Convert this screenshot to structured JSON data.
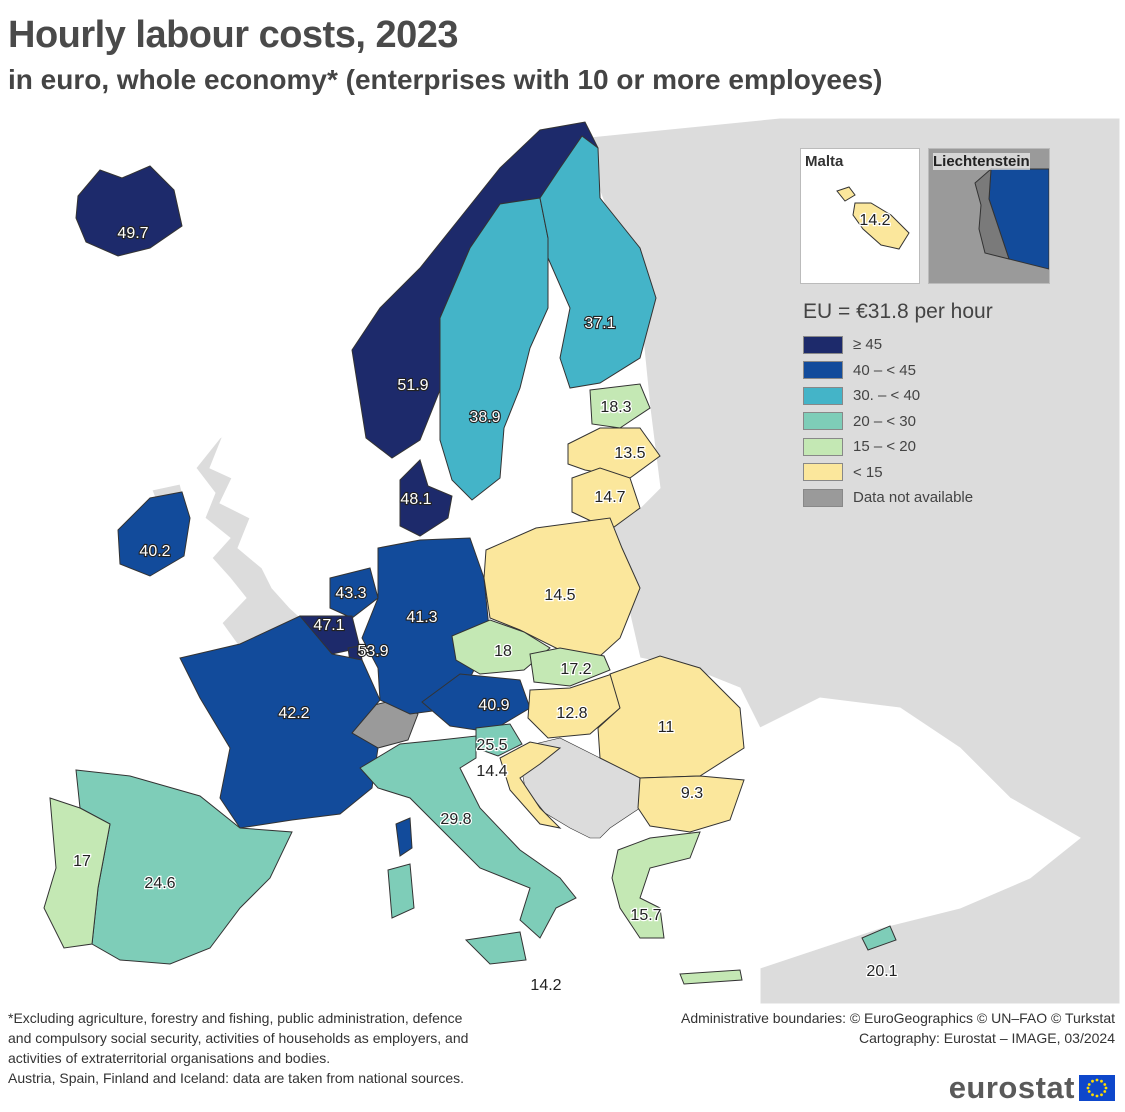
{
  "title": "Hourly labour costs, 2023",
  "subtitle": "in euro, whole economy* (enterprises with 10 or more employees)",
  "colors": {
    "c45": "#1d2a6b",
    "c40": "#124b9b",
    "c30": "#44b4c8",
    "c20": "#7ecdb8",
    "c15": "#c4e8b4",
    "c0": "#fbe79c",
    "na": "#9a9a9a",
    "nonEU": "#dcdcdc",
    "sea": "#ffffff",
    "border": "#333333"
  },
  "legend": {
    "title": "EU = €31.8 per hour",
    "items": [
      {
        "label": "≥ 45",
        "color": "#1d2a6b"
      },
      {
        "label": "40 – < 45",
        "color": "#124b9b"
      },
      {
        "label": "30. – < 40",
        "color": "#44b4c8"
      },
      {
        "label": "20 – < 30",
        "color": "#7ecdb8"
      },
      {
        "label": "15 – < 20",
        "color": "#c4e8b4"
      },
      {
        "label": "< 15",
        "color": "#fbe79c"
      },
      {
        "label": "Data not available",
        "color": "#9a9a9a"
      }
    ]
  },
  "insets": {
    "malta": {
      "label": "Malta",
      "value": "14.2"
    },
    "liechtenstein": {
      "label": "Liechtenstein"
    }
  },
  "values": {
    "iceland": "49.7",
    "norway": "51.9",
    "sweden": "38.9",
    "finland": "37.1",
    "estonia": "18.3",
    "latvia": "13.5",
    "lithuania": "14.7",
    "denmark": "48.1",
    "ireland": "40.2",
    "netherlands": "43.3",
    "belgium": "47.1",
    "luxembourg": "53.9",
    "germany": "41.3",
    "poland": "14.5",
    "czechia": "18",
    "slovakia": "17.2",
    "austria": "40.9",
    "hungary": "12.8",
    "romania": "11",
    "slovenia": "25.5",
    "croatia": "14.4",
    "bulgaria": "9.3",
    "france": "42.2",
    "italy": "29.8",
    "spain": "24.6",
    "portugal": "17",
    "greece": "15.7",
    "malta": "14.2",
    "cyprus": "20.1"
  },
  "footnote": [
    "*Excluding agriculture, forestry and fishing, public administration, defence",
    "and compulsory social security, activities of households as employers, and",
    "activities of extraterritorial organisations and bodies.",
    "Austria, Spain, Finland and Iceland: data are taken from national sources."
  ],
  "credits": [
    "Administrative boundaries: © EuroGeographics © UN–FAO © Turkstat",
    "Cartography: Eurostat – IMAGE, 03/2024"
  ],
  "logo_text": "eurostat"
}
